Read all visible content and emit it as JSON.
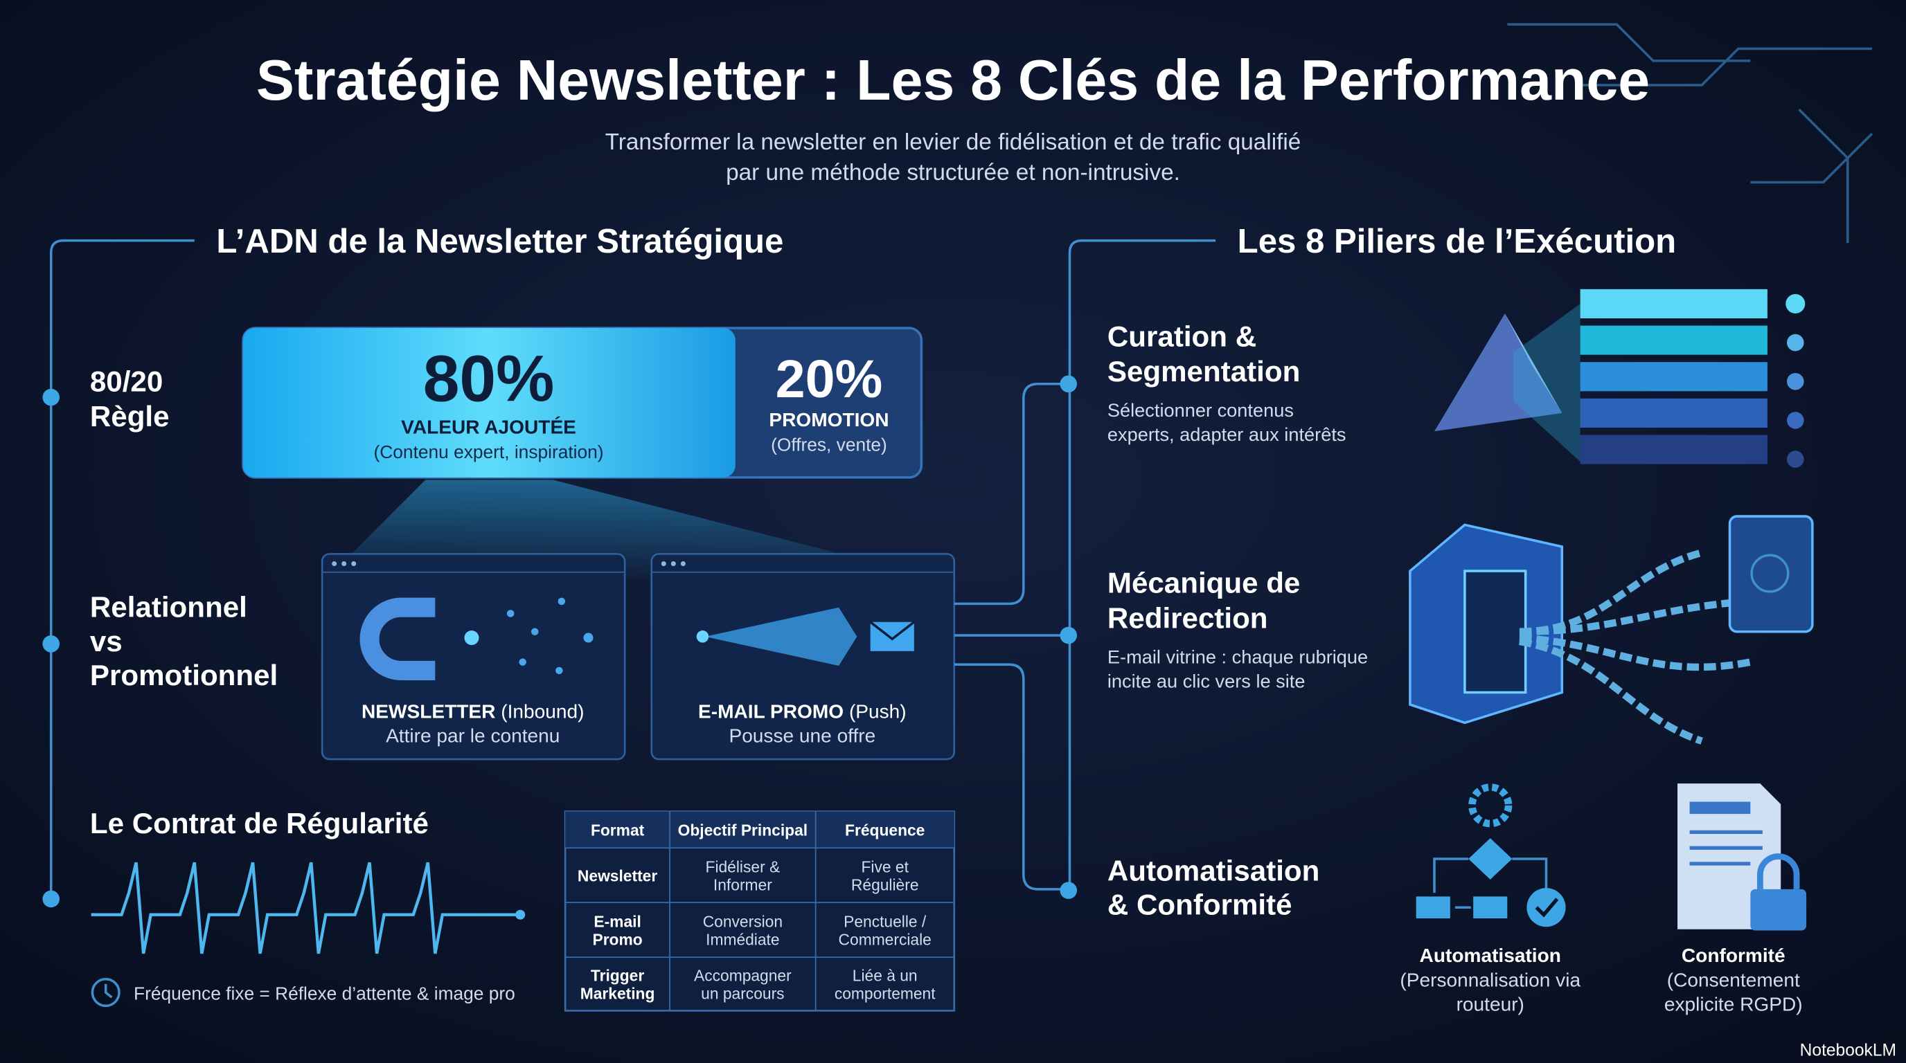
{
  "header": {
    "title": "Stratégie Newsletter : Les 8 Clés de la Performance",
    "subtitle": [
      "Transformer la newsletter en levier de fidélisation et de trafic qualifié",
      "par une méthode structurée et non-intrusive."
    ]
  },
  "left": {
    "heading": "L’ADN de la Newsletter Stratégique",
    "rule": [
      "80/20",
      "Règle"
    ],
    "split": {
      "major": {
        "value": "80%",
        "label": "VALEUR AJOUTÉE",
        "note": "(Contenu expert, inspiration)"
      },
      "minor": {
        "value": "20%",
        "label": "PROMOTION",
        "note": "(Offres, vente)"
      }
    },
    "contrast": [
      "Relationnel",
      "vs",
      "Promotionnel"
    ],
    "cards": [
      {
        "title": "NEWSLETTER",
        "tag": "(Inbound)",
        "desc": "Attire par le contenu"
      },
      {
        "title": "E-MAIL PROMO",
        "tag": "(Push)",
        "desc": "Pousse une offre"
      }
    ],
    "regularity": "Le Contrat de Régularité",
    "footnote": "Fréquence fixe = Réflexe d’attente & image pro",
    "table": {
      "header": [
        "Format",
        "Objectif Principal",
        "Fréquence"
      ],
      "rows": [
        [
          [
            "Newsletter"
          ],
          [
            "Fidéliser &",
            "Informer"
          ],
          [
            "Five et",
            "Régulière"
          ]
        ],
        [
          [
            "E-mail",
            "Promo"
          ],
          [
            "Conversion",
            "Immédiate"
          ],
          [
            "Penctuelle /",
            "Commerciale"
          ]
        ],
        [
          [
            "Trigger",
            "Marketing"
          ],
          [
            "Accompagner",
            "un parcours"
          ],
          [
            "Liée à un",
            "comportement"
          ]
        ]
      ]
    }
  },
  "right": {
    "heading": "Les 8 Piliers de l’Exécution",
    "pillars": [
      {
        "title": [
          "Curation &",
          "Segmentation"
        ],
        "desc": [
          "Sélectionner contenus",
          "experts, adapter aux intérêts"
        ]
      },
      {
        "title": [
          "Mécanique de",
          "Redirection"
        ],
        "desc": [
          "E-mail vitrine : chaque rubrique",
          "incite au clic vers le site"
        ]
      },
      {
        "title": [
          "Automatisation",
          "& Conformité"
        ],
        "desc": []
      }
    ],
    "icons": [
      {
        "title": "Automatisation",
        "desc": [
          "(Personnalisation via",
          "routeur)"
        ]
      },
      {
        "title": "Conformité",
        "desc": [
          "(Consentement",
          "explicite RGPD)"
        ]
      }
    ]
  },
  "brand": "NotebookLM"
}
